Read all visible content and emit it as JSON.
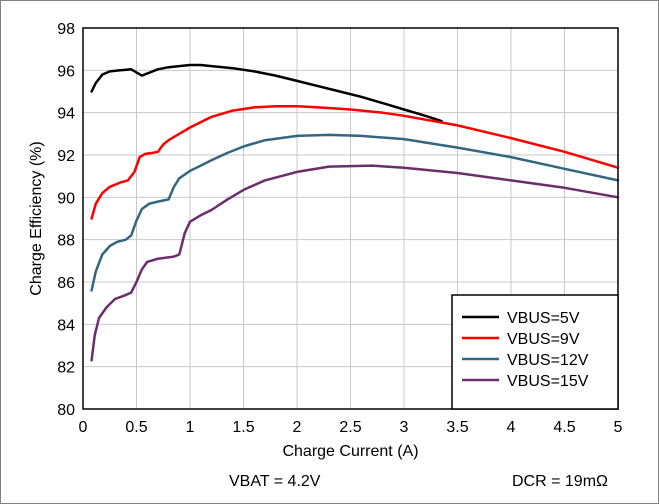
{
  "chart_data": {
    "type": "line",
    "title": "",
    "xlabel": "Charge Current (A)",
    "ylabel": "Charge Efficiency (%)",
    "xlim": [
      0,
      5
    ],
    "ylim": [
      80,
      98
    ],
    "xticks": [
      "0",
      "0.5",
      "1",
      "1.5",
      "2",
      "2.5",
      "3",
      "3.5",
      "4",
      "4.5",
      "5"
    ],
    "yticks": [
      "80",
      "82",
      "84",
      "86",
      "88",
      "90",
      "92",
      "94",
      "96",
      "98"
    ],
    "grid": true,
    "legend_position": "bottom-right",
    "series": [
      {
        "name": "VBUS=5V",
        "color": "#000000",
        "points": [
          [
            0.08,
            95.0
          ],
          [
            0.12,
            95.4
          ],
          [
            0.18,
            95.8
          ],
          [
            0.25,
            95.95
          ],
          [
            0.35,
            96.0
          ],
          [
            0.45,
            96.05
          ],
          [
            0.5,
            95.9
          ],
          [
            0.55,
            95.75
          ],
          [
            0.6,
            95.85
          ],
          [
            0.7,
            96.05
          ],
          [
            0.8,
            96.15
          ],
          [
            0.9,
            96.2
          ],
          [
            1.0,
            96.25
          ],
          [
            1.1,
            96.25
          ],
          [
            1.2,
            96.2
          ],
          [
            1.4,
            96.1
          ],
          [
            1.6,
            95.95
          ],
          [
            1.8,
            95.75
          ],
          [
            2.0,
            95.5
          ],
          [
            2.2,
            95.25
          ],
          [
            2.4,
            95.0
          ],
          [
            2.6,
            94.75
          ],
          [
            2.8,
            94.45
          ],
          [
            3.0,
            94.15
          ],
          [
            3.2,
            93.85
          ],
          [
            3.35,
            93.6
          ]
        ]
      },
      {
        "name": "VBUS=9V",
        "color": "#ff0000",
        "points": [
          [
            0.08,
            89.0
          ],
          [
            0.12,
            89.7
          ],
          [
            0.18,
            90.2
          ],
          [
            0.25,
            90.5
          ],
          [
            0.35,
            90.7
          ],
          [
            0.42,
            90.8
          ],
          [
            0.48,
            91.2
          ],
          [
            0.53,
            91.9
          ],
          [
            0.58,
            92.05
          ],
          [
            0.65,
            92.1
          ],
          [
            0.7,
            92.15
          ],
          [
            0.75,
            92.5
          ],
          [
            0.8,
            92.7
          ],
          [
            0.9,
            93.0
          ],
          [
            1.0,
            93.3
          ],
          [
            1.2,
            93.8
          ],
          [
            1.4,
            94.1
          ],
          [
            1.6,
            94.25
          ],
          [
            1.8,
            94.3
          ],
          [
            2.0,
            94.3
          ],
          [
            2.2,
            94.25
          ],
          [
            2.5,
            94.15
          ],
          [
            2.8,
            94.0
          ],
          [
            3.0,
            93.85
          ],
          [
            3.5,
            93.4
          ],
          [
            4.0,
            92.8
          ],
          [
            4.5,
            92.15
          ],
          [
            5.0,
            91.4
          ]
        ]
      },
      {
        "name": "VBUS=12V",
        "color": "#336680",
        "points": [
          [
            0.08,
            85.6
          ],
          [
            0.12,
            86.5
          ],
          [
            0.18,
            87.3
          ],
          [
            0.25,
            87.7
          ],
          [
            0.32,
            87.9
          ],
          [
            0.4,
            88.0
          ],
          [
            0.45,
            88.2
          ],
          [
            0.5,
            88.9
          ],
          [
            0.55,
            89.45
          ],
          [
            0.62,
            89.7
          ],
          [
            0.7,
            89.8
          ],
          [
            0.8,
            89.9
          ],
          [
            0.85,
            90.5
          ],
          [
            0.9,
            90.9
          ],
          [
            1.0,
            91.25
          ],
          [
            1.1,
            91.5
          ],
          [
            1.2,
            91.75
          ],
          [
            1.35,
            92.1
          ],
          [
            1.5,
            92.4
          ],
          [
            1.7,
            92.7
          ],
          [
            2.0,
            92.9
          ],
          [
            2.3,
            92.95
          ],
          [
            2.6,
            92.9
          ],
          [
            3.0,
            92.75
          ],
          [
            3.5,
            92.35
          ],
          [
            4.0,
            91.9
          ],
          [
            4.5,
            91.35
          ],
          [
            5.0,
            90.8
          ]
        ]
      },
      {
        "name": "VBUS=15V",
        "color": "#6b2d6b",
        "points": [
          [
            0.08,
            82.3
          ],
          [
            0.11,
            83.5
          ],
          [
            0.15,
            84.3
          ],
          [
            0.22,
            84.8
          ],
          [
            0.3,
            85.2
          ],
          [
            0.38,
            85.35
          ],
          [
            0.45,
            85.5
          ],
          [
            0.5,
            86.0
          ],
          [
            0.55,
            86.6
          ],
          [
            0.6,
            86.95
          ],
          [
            0.7,
            87.1
          ],
          [
            0.85,
            87.2
          ],
          [
            0.9,
            87.3
          ],
          [
            0.95,
            88.3
          ],
          [
            1.0,
            88.85
          ],
          [
            1.1,
            89.15
          ],
          [
            1.2,
            89.4
          ],
          [
            1.35,
            89.9
          ],
          [
            1.5,
            90.35
          ],
          [
            1.7,
            90.8
          ],
          [
            2.0,
            91.2
          ],
          [
            2.3,
            91.45
          ],
          [
            2.7,
            91.5
          ],
          [
            3.0,
            91.4
          ],
          [
            3.5,
            91.15
          ],
          [
            4.0,
            90.8
          ],
          [
            4.5,
            90.45
          ],
          [
            5.0,
            90.0
          ]
        ]
      }
    ]
  },
  "footer": {
    "left_note": "VBAT = 4.2V",
    "right_note": "DCR = 19mΩ"
  }
}
